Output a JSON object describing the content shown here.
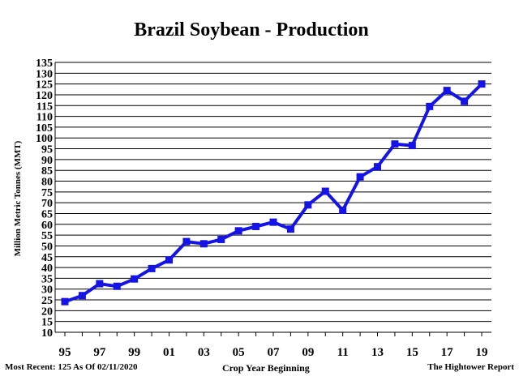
{
  "chart_data": {
    "type": "line",
    "title": "Brazil Soybean - Production",
    "xlabel": "Crop Year Beginning",
    "ylabel": "Million Metric Tonnes (MMT)",
    "x_tick_labels": [
      "95",
      "97",
      "99",
      "01",
      "03",
      "05",
      "07",
      "09",
      "11",
      "13",
      "15",
      "17",
      "19"
    ],
    "y_tick_labels": [
      "10",
      "15",
      "20",
      "25",
      "30",
      "35",
      "40",
      "45",
      "50",
      "55",
      "60",
      "65",
      "70",
      "75",
      "80",
      "85",
      "90",
      "95",
      "100",
      "105",
      "110",
      "115",
      "120",
      "125",
      "130",
      "135"
    ],
    "ylim": [
      10,
      135
    ],
    "grid": true,
    "color": "#1414e6",
    "series": [
      {
        "x": [
          1995,
          1996,
          1997,
          1998,
          1999,
          2000,
          2001,
          2002,
          2003,
          2004,
          2005,
          2006,
          2007,
          2008,
          2009,
          2010,
          2011,
          2012,
          2013,
          2014,
          2015,
          2016,
          2017,
          2018,
          2019
        ],
        "values": [
          24.2,
          27,
          32.5,
          31.3,
          34.7,
          39.5,
          43.5,
          52,
          51,
          53,
          57,
          59,
          61,
          57.8,
          69,
          75.3,
          66.5,
          82,
          86.7,
          97.2,
          96.5,
          114.6,
          122,
          117,
          125
        ]
      }
    ]
  },
  "footer": {
    "left": "Most Recent: 125 As Of 02/11/2020",
    "right": "The Hightower Report"
  }
}
